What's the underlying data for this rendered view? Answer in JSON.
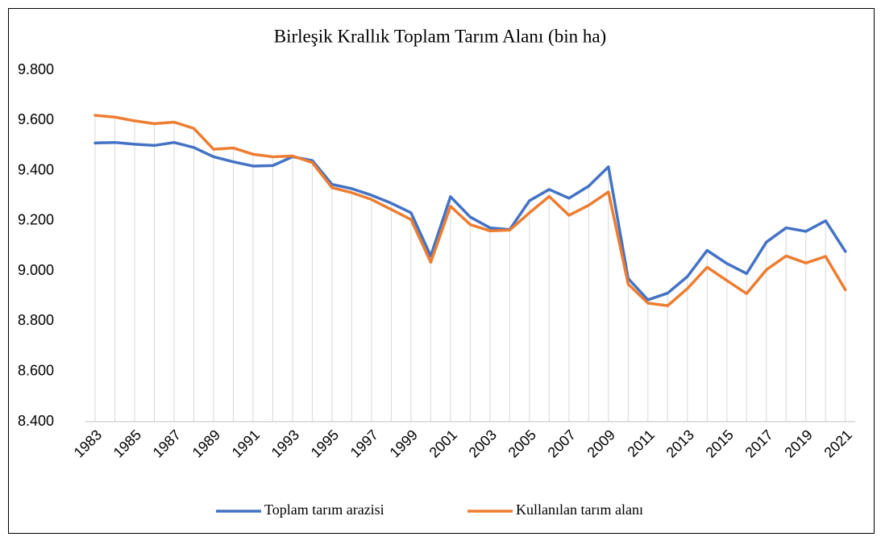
{
  "chart_data": {
    "type": "line",
    "title": "Birleşik Krallık Toplam Tarım Alanı (bin ha)",
    "categories": [
      "1983",
      null,
      "1985",
      null,
      "1987",
      null,
      "1989",
      null,
      "1991",
      null,
      "1993",
      null,
      "1995",
      null,
      "1997",
      null,
      "1999",
      null,
      "2001",
      null,
      "2003",
      null,
      "2005",
      null,
      "2007",
      null,
      "2009",
      null,
      "2011",
      null,
      "2013",
      null,
      "2015",
      null,
      "2017",
      null,
      "2019",
      null,
      "2021"
    ],
    "series": [
      {
        "name": "Toplam tarım arazisi",
        "color": "#4472c4",
        "values": [
          9510,
          9512,
          9505,
          9500,
          9512,
          9492,
          9455,
          9435,
          9418,
          9420,
          9455,
          9440,
          9345,
          9328,
          9302,
          9270,
          9232,
          9060,
          9296,
          9215,
          9172,
          9165,
          9280,
          9325,
          9290,
          9338,
          9415,
          8970,
          8885,
          8912,
          8978,
          9082,
          9030,
          8990,
          9115,
          9172,
          9158,
          9200,
          9078
        ]
      },
      {
        "name": "Kullanılan tarım alanı",
        "color": "#ed7d31",
        "values": [
          9620,
          9613,
          9598,
          9587,
          9593,
          9568,
          9485,
          9490,
          9465,
          9455,
          9458,
          9432,
          9332,
          9312,
          9285,
          9245,
          9205,
          9035,
          9258,
          9185,
          9160,
          9163,
          9232,
          9297,
          9222,
          9262,
          9315,
          8948,
          8872,
          8862,
          8930,
          9015,
          8962,
          8910,
          9005,
          9060,
          9032,
          9058,
          8925
        ]
      }
    ],
    "ylim": [
      8400,
      9800
    ],
    "yticks": [
      {
        "value": 8400,
        "label": "8.400"
      },
      {
        "value": 8600,
        "label": "8.600"
      },
      {
        "value": 8800,
        "label": "8.800"
      },
      {
        "value": 9000,
        "label": "9.000"
      },
      {
        "value": 9200,
        "label": "9.200"
      },
      {
        "value": 9400,
        "label": "9.400"
      },
      {
        "value": 9600,
        "label": "9.600"
      },
      {
        "value": 9800,
        "label": "9.800"
      }
    ],
    "drop_lines": true
  }
}
